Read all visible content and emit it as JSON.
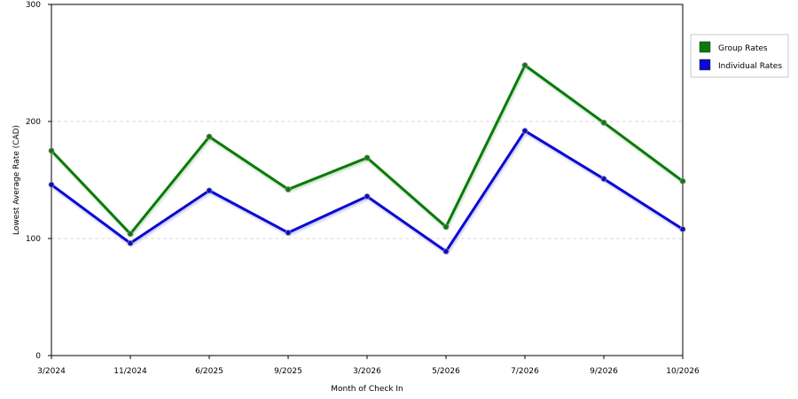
{
  "chart_data": {
    "type": "line",
    "title": "",
    "xlabel": "Month of Check In",
    "ylabel": "Lowest Average Rate (CAD)",
    "categories": [
      "3/2024",
      "11/2024",
      "6/2025",
      "9/2025",
      "3/2026",
      "5/2026",
      "7/2026",
      "9/2026",
      "10/2026"
    ],
    "ylim": [
      0,
      300
    ],
    "yticks": [
      0,
      100,
      200,
      300
    ],
    "grid": true,
    "legend_position": "top-right",
    "series": [
      {
        "name": "Group Rates",
        "color": "#0a7a0a",
        "values": [
          175,
          104,
          187,
          142,
          169,
          110,
          248,
          199,
          149
        ]
      },
      {
        "name": "Individual Rates",
        "color": "#0a0ad0",
        "values": [
          146,
          96,
          141,
          105,
          136,
          89,
          192,
          151,
          108
        ]
      }
    ]
  }
}
